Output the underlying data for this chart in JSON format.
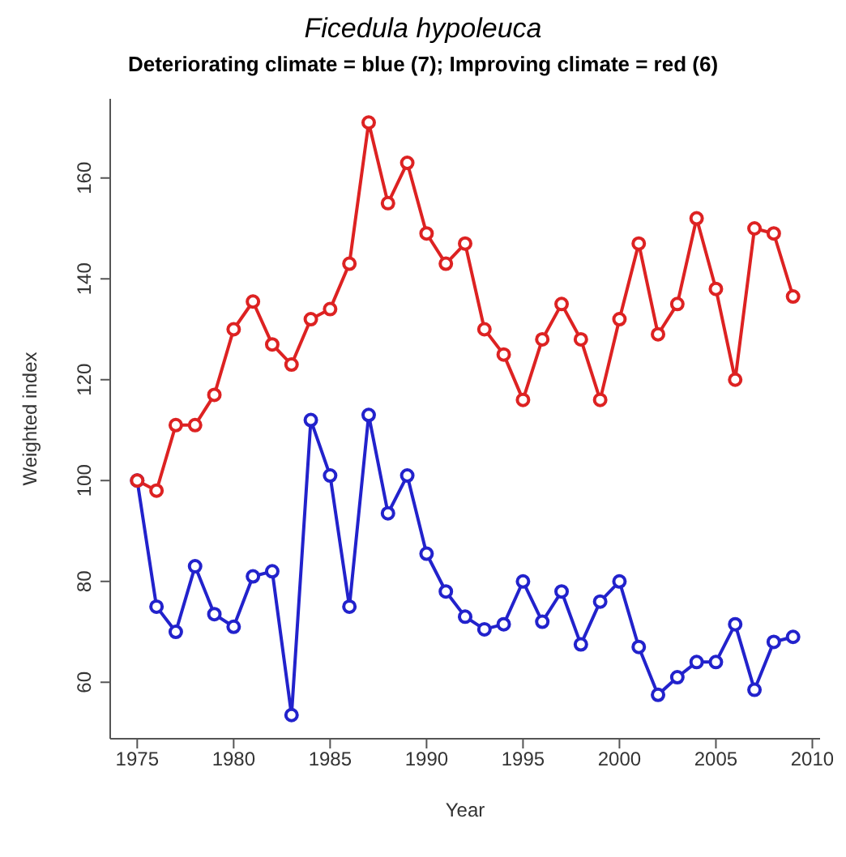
{
  "chart_data": {
    "type": "line",
    "title": "Ficedula hypoleuca",
    "subtitle": "Deteriorating climate = blue (7); Improving climate = red (6)",
    "xlabel": "Year",
    "ylabel": "Weighted index",
    "x": [
      1975,
      1976,
      1977,
      1978,
      1979,
      1980,
      1981,
      1982,
      1983,
      1984,
      1985,
      1986,
      1987,
      1988,
      1989,
      1990,
      1991,
      1992,
      1993,
      1994,
      1995,
      1996,
      1997,
      1998,
      1999,
      2000,
      2001,
      2002,
      2003,
      2004,
      2005,
      2006,
      2007,
      2008,
      2009
    ],
    "series": [
      {
        "color": "#dd2222",
        "values": [
          100,
          98,
          111,
          111,
          117,
          130,
          135.5,
          127,
          123,
          132,
          134,
          143,
          171,
          155,
          163,
          149,
          143,
          147,
          130,
          125,
          116,
          128,
          135,
          128,
          116,
          132,
          147,
          129,
          135,
          152,
          138,
          120,
          150,
          149,
          136.5
        ]
      },
      {
        "color": "#2222cc",
        "values": [
          100,
          75,
          70,
          83,
          73.5,
          71,
          81,
          82,
          53.5,
          112,
          101,
          75,
          113,
          93.5,
          101,
          85.5,
          78,
          73,
          70.5,
          71.5,
          80,
          72,
          78,
          67.5,
          76,
          80,
          67,
          57.5,
          61,
          64,
          64,
          71.5,
          58.5,
          68,
          69
        ]
      }
    ],
    "xlim": [
      1973.6,
      2010.4
    ],
    "xticks": [
      1975,
      1980,
      1985,
      1990,
      1995,
      2000,
      2005,
      2010
    ],
    "ylim": [
      48.8,
      175.7
    ],
    "yticks": [
      60,
      80,
      100,
      120,
      140,
      160
    ],
    "marker": "circle",
    "line_style": "solid",
    "grid": false,
    "legend": false
  }
}
